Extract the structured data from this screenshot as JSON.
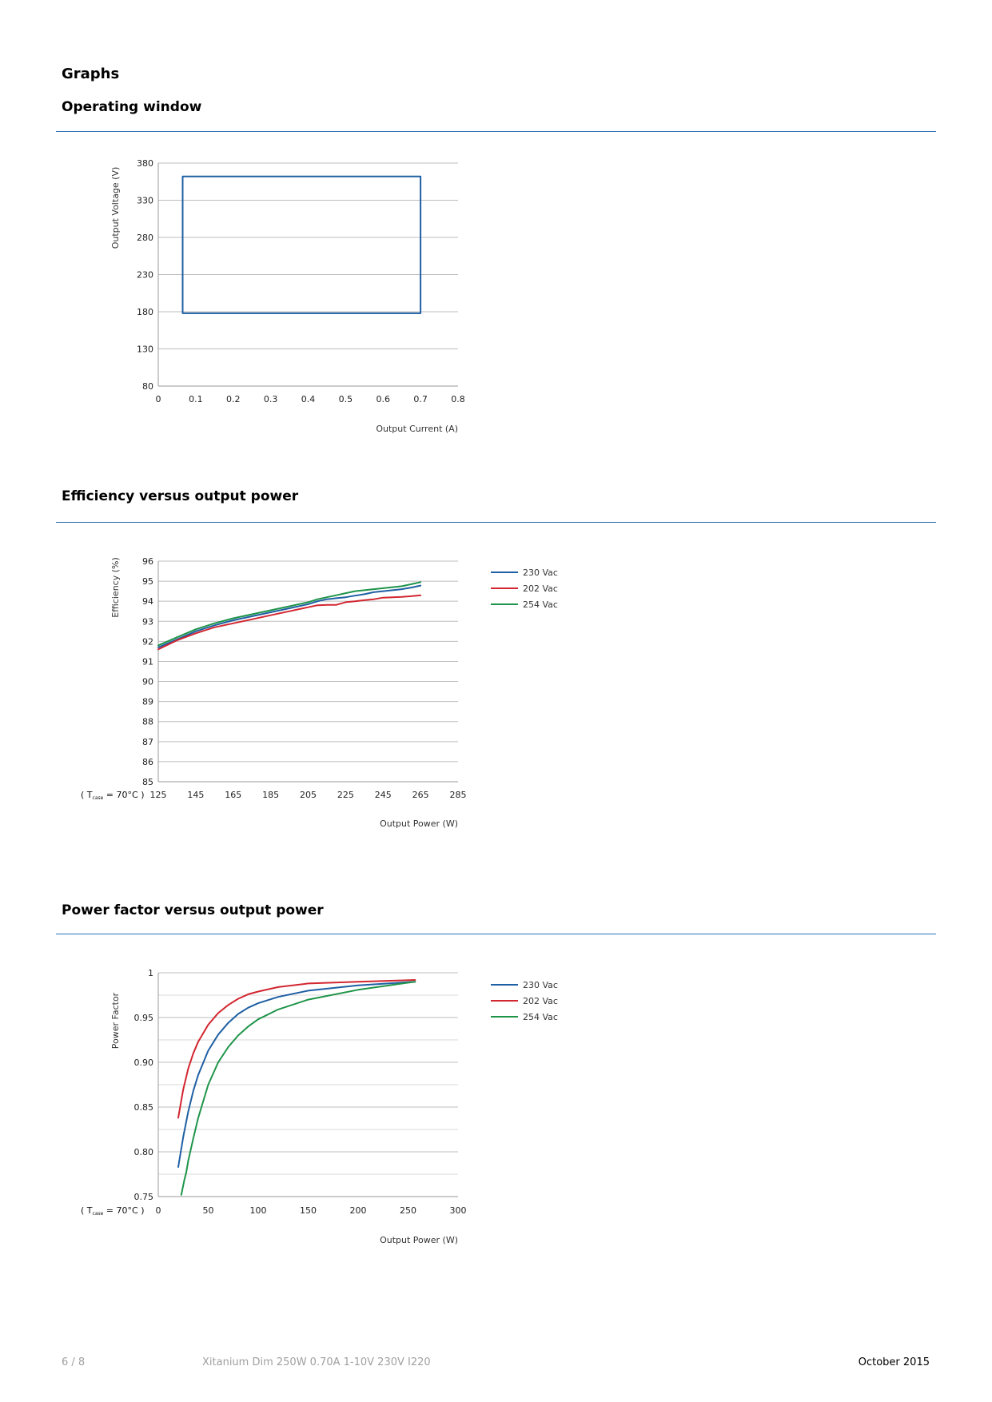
{
  "page": {
    "heading": "Graphs",
    "footer": {
      "page_number": "6 / 8",
      "product": "Xitanium Dim 250W 0.70A 1-10V 230V I220",
      "date": "October 2015"
    },
    "accent_color": "#2f73b6"
  },
  "sections": [
    {
      "title": "Operating window"
    },
    {
      "title": "Efficiency versus output power"
    },
    {
      "title": "Power factor versus output power"
    }
  ],
  "chart_data": [
    {
      "type": "line",
      "ylabel": "Output Voltage (V)",
      "xlabel": "Output Current (A)",
      "xlim": [
        0,
        0.8
      ],
      "ylim": [
        80,
        380
      ],
      "x_ticks": [
        "0",
        "0.1",
        "0.2",
        "0.3",
        "0.4",
        "0.5",
        "0.6",
        "0.7",
        "0.8"
      ],
      "y_ticks": [
        "380",
        "330",
        "280",
        "230",
        "180",
        "130",
        "80"
      ],
      "series": [
        {
          "color": "#1f5fa3",
          "points": [
            [
              0.065,
              178
            ],
            [
              0.065,
              362
            ],
            [
              0.7,
              362
            ],
            [
              0.7,
              178
            ],
            [
              0.065,
              178
            ]
          ]
        }
      ]
    },
    {
      "type": "line",
      "ylabel": "Efficiency (%)",
      "xlabel": "Output Power (W)",
      "condition": {
        "prefix": "( T",
        "subscript": "case",
        "suffix": " = 70°C )"
      },
      "xlim": [
        125,
        285
      ],
      "ylim": [
        85,
        96
      ],
      "x_ticks": [
        "125",
        "145",
        "165",
        "185",
        "205",
        "225",
        "245",
        "265",
        "285"
      ],
      "y_ticks": [
        "96",
        "95",
        "94",
        "93",
        "92",
        "91",
        "90",
        "89",
        "88",
        "87",
        "86",
        "85"
      ],
      "series": [
        {
          "name": "230 Vac",
          "color": "#1f5fa3",
          "x": [
            125,
            135,
            145,
            155,
            165,
            175,
            185,
            195,
            205,
            210,
            215,
            220,
            225,
            230,
            235,
            240,
            245,
            250,
            255,
            260,
            265
          ],
          "y": [
            91.7,
            92.1,
            92.5,
            92.8,
            93.05,
            93.25,
            93.45,
            93.65,
            93.85,
            94.0,
            94.1,
            94.15,
            94.2,
            94.28,
            94.35,
            94.45,
            94.5,
            94.55,
            94.6,
            94.68,
            94.78
          ]
        },
        {
          "name": "202 Vac",
          "color": "#d22630",
          "x": [
            125,
            135,
            145,
            155,
            165,
            175,
            185,
            195,
            205,
            210,
            215,
            220,
            225,
            230,
            235,
            240,
            245,
            250,
            255,
            260,
            265
          ],
          "y": [
            91.6,
            92.05,
            92.4,
            92.7,
            92.9,
            93.1,
            93.3,
            93.5,
            93.7,
            93.8,
            93.82,
            93.82,
            93.95,
            94.0,
            94.05,
            94.1,
            94.18,
            94.2,
            94.22,
            94.25,
            94.3
          ]
        },
        {
          "name": "254 Vac",
          "color": "#1e9449",
          "x": [
            125,
            135,
            145,
            155,
            165,
            175,
            185,
            195,
            205,
            210,
            215,
            220,
            225,
            230,
            235,
            240,
            245,
            250,
            255,
            260,
            265
          ],
          "y": [
            91.8,
            92.2,
            92.6,
            92.9,
            93.15,
            93.35,
            93.55,
            93.75,
            93.95,
            94.1,
            94.2,
            94.3,
            94.4,
            94.5,
            94.55,
            94.6,
            94.65,
            94.7,
            94.75,
            94.85,
            94.95
          ]
        }
      ],
      "legend": "right"
    },
    {
      "type": "line",
      "ylabel": "Power Factor",
      "xlabel": "Output Power (W)",
      "condition": {
        "prefix": "( T",
        "subscript": "case",
        "suffix": " = 70°C )"
      },
      "xlim": [
        0,
        300
      ],
      "ylim": [
        0.75,
        1.0
      ],
      "x_ticks": [
        "0",
        "50",
        "100",
        "150",
        "200",
        "250",
        "300"
      ],
      "y_ticks": [
        "1",
        "0.95",
        "0.90",
        "0.85",
        "0.80",
        "0.75"
      ],
      "series": [
        {
          "name": "230 Vac",
          "color": "#1f5fa3",
          "x": [
            20,
            25,
            30,
            35,
            40,
            50,
            60,
            70,
            80,
            90,
            100,
            120,
            150,
            200,
            257
          ],
          "y": [
            0.783,
            0.817,
            0.845,
            0.868,
            0.886,
            0.913,
            0.931,
            0.944,
            0.954,
            0.961,
            0.966,
            0.973,
            0.98,
            0.986,
            0.99
          ]
        },
        {
          "name": "202 Vac",
          "color": "#d22630",
          "x": [
            20,
            25,
            30,
            35,
            40,
            50,
            60,
            70,
            80,
            90,
            100,
            120,
            150,
            200,
            257
          ],
          "y": [
            0.838,
            0.87,
            0.893,
            0.91,
            0.923,
            0.942,
            0.955,
            0.964,
            0.971,
            0.976,
            0.979,
            0.984,
            0.988,
            0.99,
            0.992
          ]
        },
        {
          "name": "254 Vac",
          "color": "#1e9449",
          "x": [
            23,
            26,
            28,
            30,
            35,
            40,
            50,
            60,
            70,
            80,
            90,
            100,
            120,
            150,
            200,
            257
          ],
          "y": [
            0.752,
            0.768,
            0.777,
            0.79,
            0.815,
            0.838,
            0.875,
            0.9,
            0.917,
            0.93,
            0.94,
            0.948,
            0.959,
            0.97,
            0.981,
            0.99
          ]
        }
      ],
      "legend": "right"
    }
  ]
}
